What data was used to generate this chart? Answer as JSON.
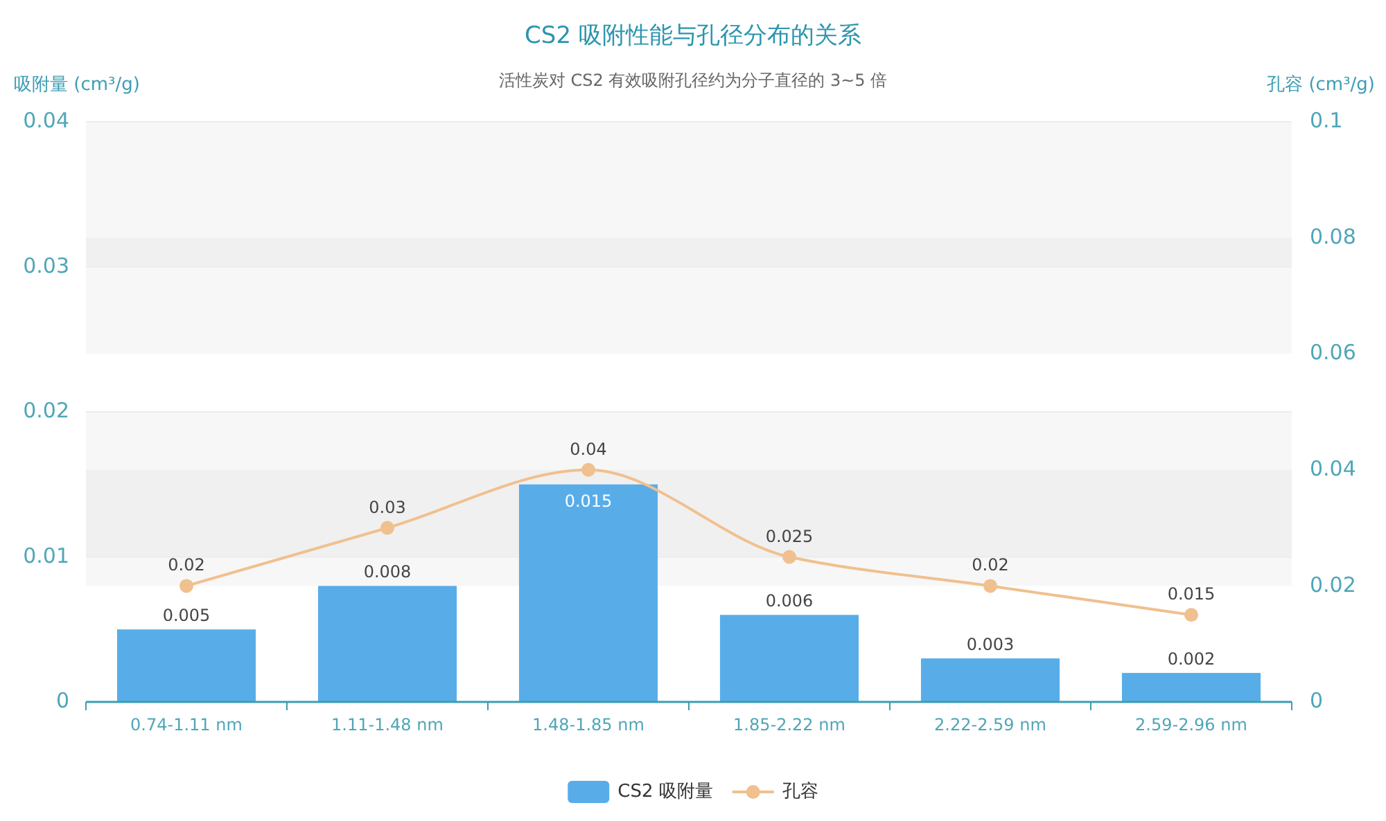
{
  "chart_data": {
    "type": "bar",
    "title": "CS2 吸附性能与孔径分布的关系",
    "subtitle": "活性炭对 CS2 有效吸附孔径约为分子直径的 3~5 倍",
    "ylabel": "吸附量 (cm³/g)",
    "y2label": "孔容 (cm³/g)",
    "categories": [
      "0.74-1.11 nm",
      "1.11-1.48 nm",
      "1.48-1.85 nm",
      "1.85-2.22 nm",
      "2.22-2.59 nm",
      "2.59-2.96 nm"
    ],
    "series": [
      {
        "name": "CS2 吸附量",
        "color": "#58ade9",
        "values": [
          0.005,
          0.008,
          0.015,
          0.006,
          0.003,
          0.002
        ]
      },
      {
        "name": "孔容",
        "type": "line",
        "axis": "y2",
        "color": "#f0c08f",
        "values": [
          0.02,
          0.03,
          0.04,
          0.025,
          0.02,
          0.015
        ]
      }
    ],
    "ylim": [
      0,
      0.04
    ],
    "yticks": [
      0,
      0.01,
      0.02,
      0.03,
      0.04
    ],
    "y2lim": [
      0,
      0.1
    ],
    "y2ticks": [
      0,
      0.02,
      0.04,
      0.06,
      0.08,
      0.1
    ],
    "data_labels": true,
    "grid": "y",
    "legend": "bottom",
    "marker": "circle",
    "line_style": "solid"
  }
}
